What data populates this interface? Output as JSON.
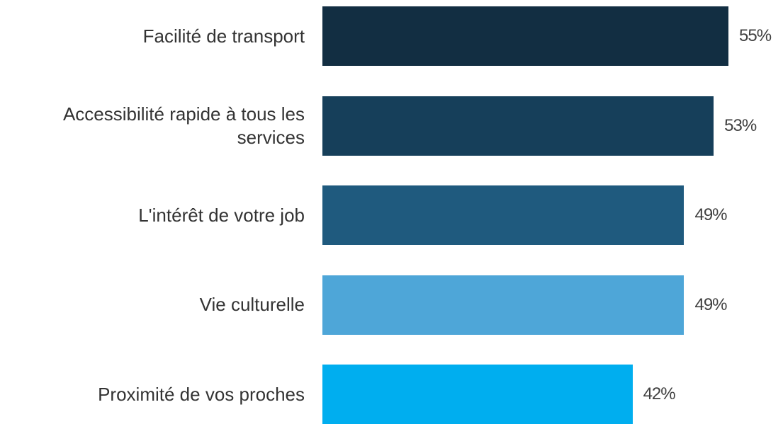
{
  "chart_data": {
    "type": "bar",
    "orientation": "horizontal",
    "categories": [
      "Facilité de transport",
      "Accessibilité rapide à tous les services",
      "L'intérêt de votre job",
      "Vie culturelle",
      "Proximité de vos proches"
    ],
    "values": [
      55,
      53,
      49,
      49,
      42
    ],
    "value_labels": [
      "55%",
      "53%",
      "49%",
      "49%",
      "42%"
    ],
    "colors": [
      "#122e42",
      "#163f5a",
      "#1f5a7e",
      "#4ea6d8",
      "#00aeef"
    ]
  }
}
